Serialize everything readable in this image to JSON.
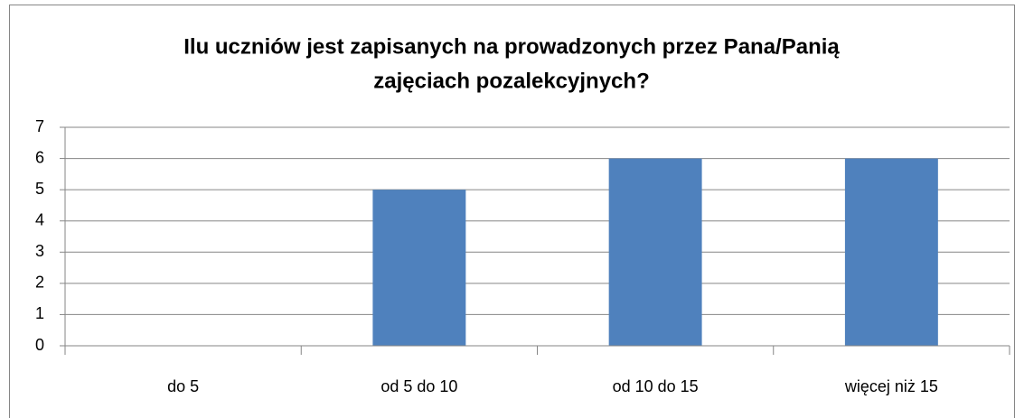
{
  "chart_data": {
    "type": "bar",
    "title": [
      "Ilu uczniów jest zapisanych na prowadzonych przez Pana/Panią",
      "zajęciach pozalekcyjnych?"
    ],
    "categories": [
      "do 5",
      "od 5 do 10",
      "od 10 do 15",
      "więcej niż 15"
    ],
    "values": [
      0,
      5,
      6,
      6
    ],
    "color": "#4f81bd",
    "ylim": [
      0,
      7
    ],
    "yticks": [
      0,
      1,
      2,
      3,
      4,
      5,
      6,
      7
    ],
    "grid": true
  }
}
